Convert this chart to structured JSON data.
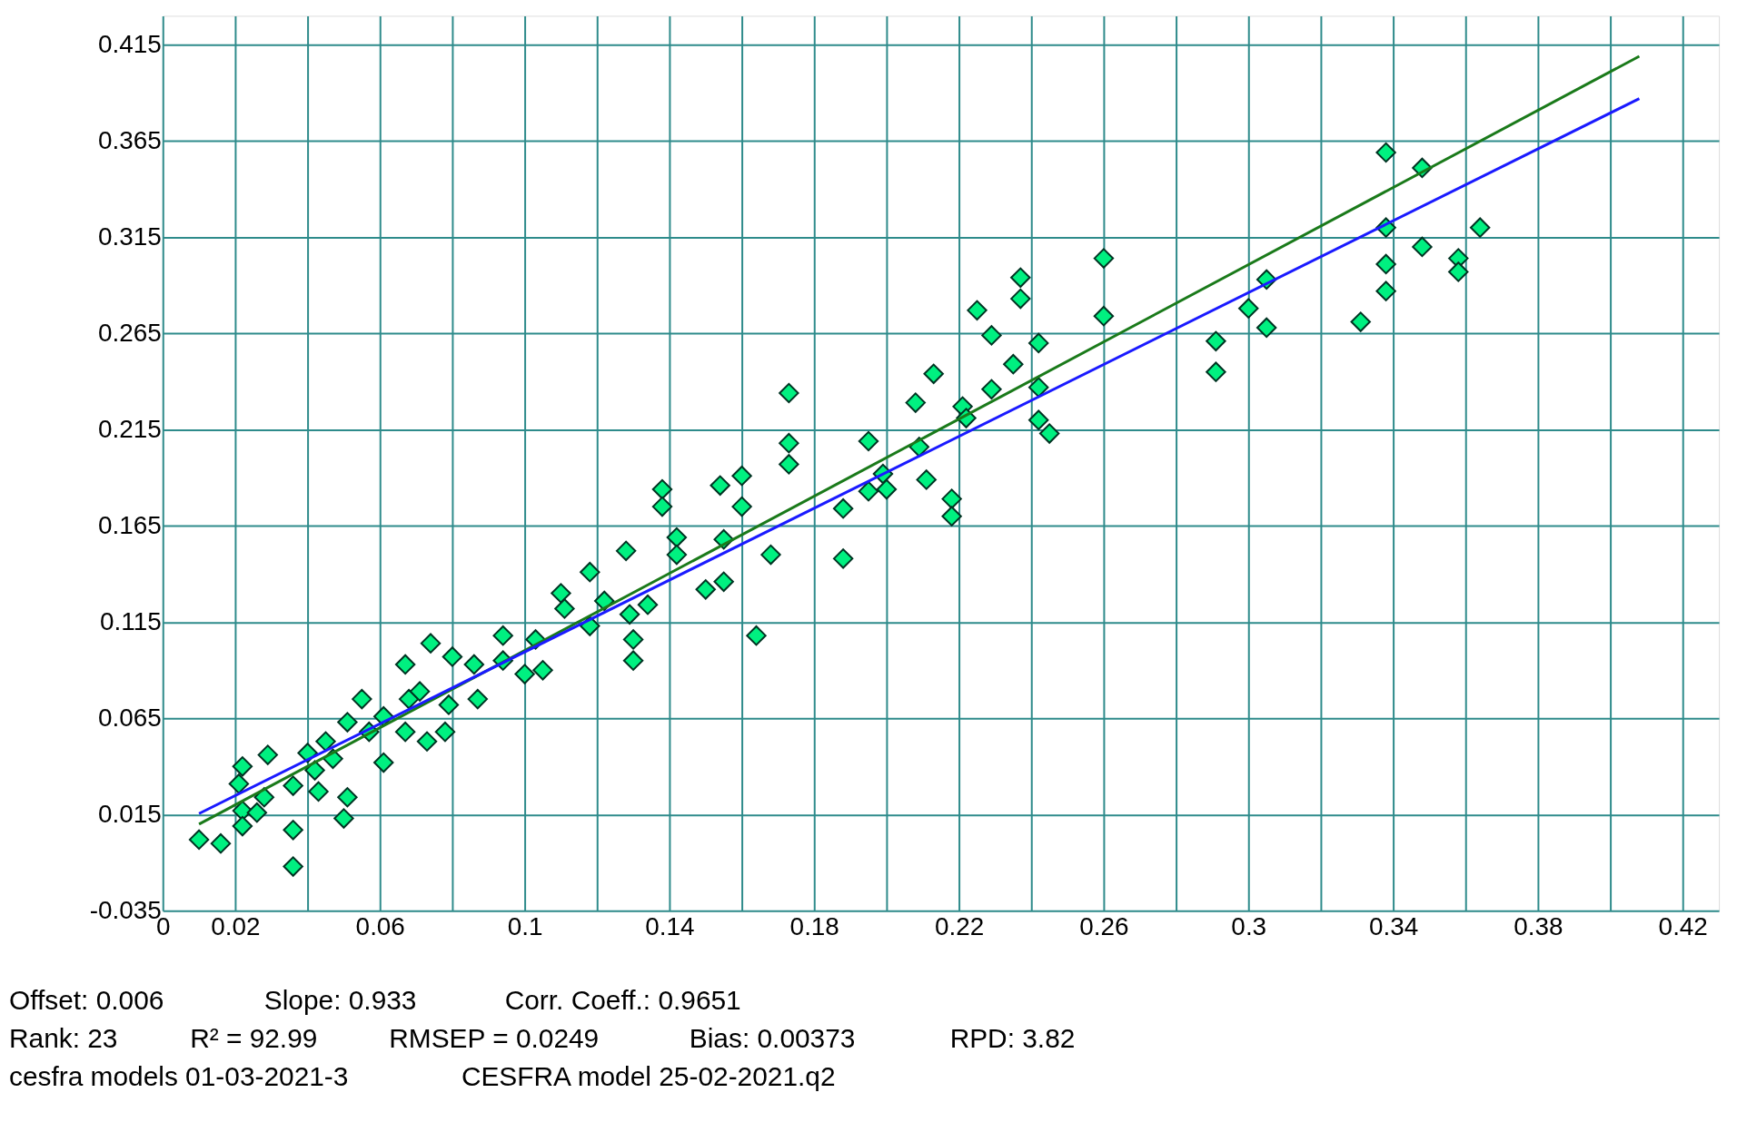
{
  "chart_data": {
    "type": "scatter",
    "xlim": [
      0,
      0.43
    ],
    "ylim": [
      -0.035,
      0.43
    ],
    "xticks": [
      0,
      0.02,
      {
        "value": 0.04,
        "label": null
      },
      0.06,
      {
        "value": 0.08,
        "label": null
      },
      0.1,
      {
        "value": 0.12,
        "label": null
      },
      0.14,
      {
        "value": 0.16,
        "label": null
      },
      0.18,
      {
        "value": 0.2,
        "label": null
      },
      0.22,
      {
        "value": 0.24,
        "label": null
      },
      0.26,
      {
        "value": 0.28,
        "label": null
      },
      0.3,
      {
        "value": 0.32,
        "label": null
      },
      0.34,
      {
        "value": 0.36,
        "label": null
      },
      0.38,
      {
        "value": 0.4,
        "label": null
      },
      0.42
    ],
    "yticks": [
      -0.035,
      0.015,
      0.065,
      0.115,
      0.165,
      0.215,
      0.265,
      0.315,
      0.365,
      0.415
    ],
    "grid": true,
    "marker": "diamond",
    "line_style": "solid",
    "series": [
      {
        "color": "#00f080",
        "x": [
          0.01,
          0.016,
          0.022,
          0.021,
          0.022,
          0.022,
          0.026,
          0.028,
          0.029,
          0.036,
          0.036,
          0.036,
          0.04,
          0.042,
          0.043,
          0.045,
          0.047,
          0.051,
          0.05,
          0.051,
          0.055,
          0.057,
          0.061,
          0.061,
          0.067,
          0.068,
          0.067,
          0.071,
          0.073,
          0.074,
          0.078,
          0.079,
          0.08,
          0.086,
          0.087,
          0.094,
          0.094,
          0.1,
          0.103,
          0.105,
          0.11,
          0.111,
          0.118,
          0.118,
          0.122,
          0.128,
          0.129,
          0.13,
          0.13,
          0.134,
          0.138,
          0.138,
          0.142,
          0.142,
          0.15,
          0.154,
          0.155,
          0.155,
          0.16,
          0.16,
          0.164,
          0.168,
          0.173,
          0.173,
          0.173,
          0.188,
          0.188,
          0.195,
          0.195,
          0.199,
          0.2,
          0.208,
          0.209,
          0.211,
          0.213,
          0.218,
          0.218,
          0.221,
          0.222,
          0.225,
          0.229,
          0.229,
          0.235,
          0.237,
          0.237,
          0.242,
          0.242,
          0.242,
          0.245,
          0.26,
          0.26,
          0.291,
          0.291,
          0.3,
          0.305,
          0.305,
          0.331,
          0.338,
          0.338,
          0.338,
          0.338,
          0.348,
          0.348,
          0.358,
          0.358,
          0.364
        ],
        "values": [
          0.002,
          0.0,
          0.04,
          0.031,
          0.017,
          0.009,
          0.016,
          0.024,
          0.046,
          0.007,
          0.03,
          -0.012,
          0.047,
          0.038,
          0.027,
          0.053,
          0.044,
          0.024,
          0.013,
          0.063,
          0.075,
          0.058,
          0.042,
          0.066,
          0.093,
          0.075,
          0.058,
          0.079,
          0.053,
          0.104,
          0.058,
          0.072,
          0.097,
          0.093,
          0.075,
          0.108,
          0.095,
          0.088,
          0.106,
          0.09,
          0.13,
          0.122,
          0.141,
          0.113,
          0.126,
          0.152,
          0.119,
          0.095,
          0.106,
          0.124,
          0.184,
          0.175,
          0.159,
          0.15,
          0.132,
          0.186,
          0.136,
          0.158,
          0.191,
          0.175,
          0.108,
          0.15,
          0.234,
          0.208,
          0.197,
          0.174,
          0.148,
          0.209,
          0.183,
          0.192,
          0.184,
          0.229,
          0.206,
          0.189,
          0.244,
          0.179,
          0.17,
          0.227,
          0.221,
          0.277,
          0.264,
          0.236,
          0.249,
          0.294,
          0.283,
          0.26,
          0.237,
          0.22,
          0.213,
          0.304,
          0.274,
          0.261,
          0.245,
          0.278,
          0.293,
          0.268,
          0.271,
          0.359,
          0.32,
          0.301,
          0.287,
          0.351,
          0.31,
          0.304,
          0.297,
          0.32
        ]
      },
      {
        "type": "line",
        "marker": "none",
        "color": "#1a7a1a",
        "x": [
          0.01,
          0.408
        ],
        "values": [
          0.01,
          0.409
        ]
      },
      {
        "type": "line",
        "marker": "none",
        "color": "#1a1aff",
        "x": [
          0.01,
          0.408
        ],
        "values": [
          0.0155,
          0.387
        ]
      }
    ],
    "annotations": [
      "Offset: 0.006",
      "Slope: 0.933",
      "Corr. Coeff.: 0.9651",
      "Rank: 23",
      "R² = 92.99",
      "RMSEP = 0.0249",
      "Bias: 0.00373",
      "RPD: 3.82",
      "cesfra models 01-03-2021-3",
      "CESFRA model 25-02-2021.q2"
    ]
  }
}
